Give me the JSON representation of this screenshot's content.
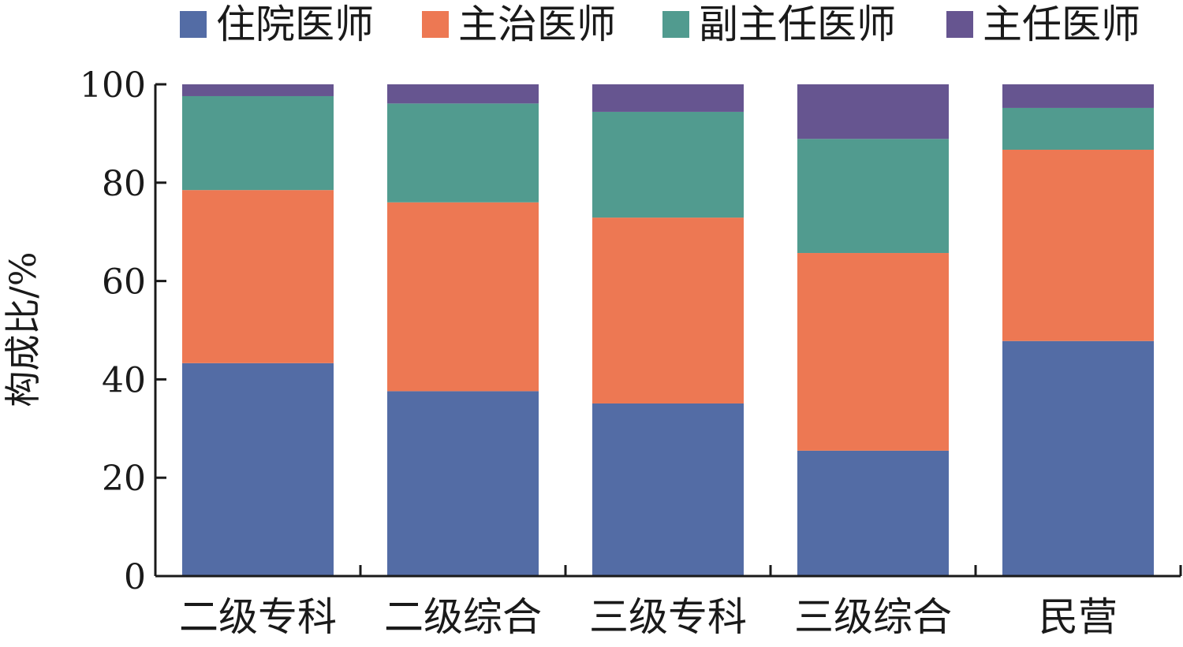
{
  "chart_data": {
    "type": "bar",
    "stacked": true,
    "title": "",
    "xlabel": "",
    "ylabel": "构成比/%",
    "ylim": [
      0,
      100
    ],
    "yticks": [
      0,
      20,
      40,
      60,
      80,
      100
    ],
    "grid": false,
    "legend_position": "top",
    "categories": [
      "二级专科",
      "二级综合",
      "三级专科",
      "三级综合",
      "民营"
    ],
    "series": [
      {
        "name": "住院医师",
        "color": "#536ca5",
        "values": [
          43.3,
          37.6,
          35.1,
          25.5,
          47.8
        ]
      },
      {
        "name": "主治医师",
        "color": "#ed7853",
        "values": [
          35.2,
          38.4,
          37.8,
          40.2,
          38.9
        ]
      },
      {
        "name": "副主任医师",
        "color": "#519b8f",
        "values": [
          19.1,
          20.1,
          21.5,
          23.2,
          8.5
        ]
      },
      {
        "name": "主任医师",
        "color": "#665590",
        "values": [
          2.4,
          3.9,
          5.6,
          11.1,
          4.8
        ]
      }
    ]
  }
}
